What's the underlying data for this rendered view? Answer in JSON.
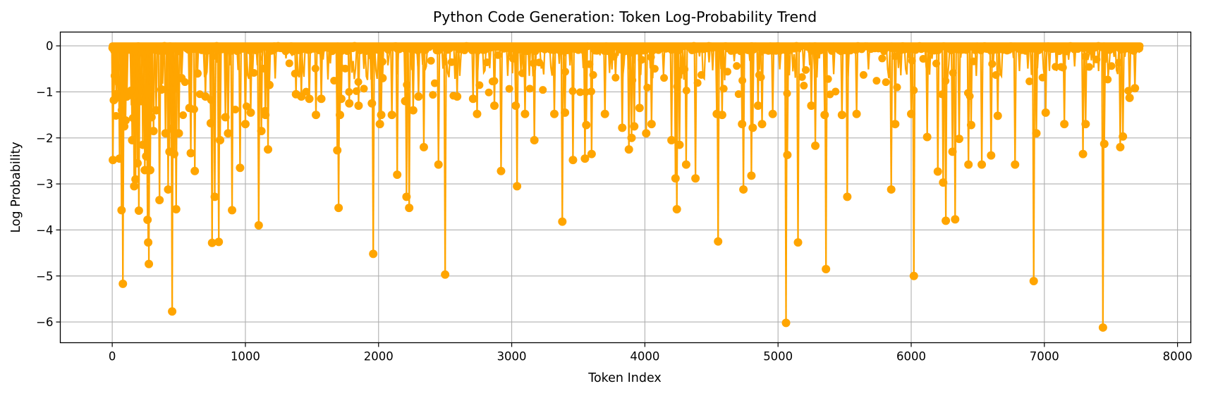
{
  "chart_data": {
    "type": "line",
    "title": "Python Code Generation: Token Log-Probability Trend",
    "xlabel": "Token Index",
    "ylabel": "Log Probability",
    "xlim": [
      -390,
      8100
    ],
    "ylim": [
      -6.45,
      0.3
    ],
    "xticks": [
      0,
      1000,
      2000,
      3000,
      4000,
      5000,
      6000,
      7000,
      8000
    ],
    "yticks": [
      0,
      -1,
      -2,
      -3,
      -4,
      -5,
      -6
    ],
    "xtick_labels": [
      "0",
      "1000",
      "2000",
      "3000",
      "4000",
      "5000",
      "6000",
      "7000",
      "8000"
    ],
    "ytick_labels": [
      "0",
      "−1",
      "−2",
      "−3",
      "−4",
      "−5",
      "−6"
    ],
    "grid": true,
    "color": "#ffa500",
    "marker": "circle",
    "n_tokens": 7720,
    "drops": [
      [
        5,
        -2.48
      ],
      [
        12,
        -1.18
      ],
      [
        20,
        -0.65
      ],
      [
        30,
        -1.05
      ],
      [
        55,
        -2.45
      ],
      [
        70,
        -3.57
      ],
      [
        80,
        -5.17
      ],
      [
        90,
        -1.75
      ],
      [
        100,
        -1.62
      ],
      [
        110,
        -1.1
      ],
      [
        150,
        -2.05
      ],
      [
        165,
        -3.05
      ],
      [
        175,
        -2.9
      ],
      [
        190,
        -2.55
      ],
      [
        200,
        -3.58
      ],
      [
        215,
        -1.2
      ],
      [
        230,
        -2.15
      ],
      [
        245,
        -2.7
      ],
      [
        255,
        -2.4
      ],
      [
        265,
        -3.78
      ],
      [
        270,
        -4.27
      ],
      [
        275,
        -4.74
      ],
      [
        285,
        -2.7
      ],
      [
        295,
        -1.55
      ],
      [
        310,
        -1.85
      ],
      [
        330,
        -1.4
      ],
      [
        355,
        -3.35
      ],
      [
        370,
        -0.95
      ],
      [
        400,
        -1.9
      ],
      [
        420,
        -3.12
      ],
      [
        430,
        -2.3
      ],
      [
        445,
        -1.8
      ],
      [
        450,
        -5.77
      ],
      [
        465,
        -2.35
      ],
      [
        480,
        -3.55
      ],
      [
        500,
        -1.9
      ],
      [
        520,
        -0.7
      ],
      [
        580,
        -1.35
      ],
      [
        590,
        -2.33
      ],
      [
        620,
        -2.72
      ],
      [
        640,
        -0.6
      ],
      [
        700,
        -1.1
      ],
      [
        740,
        -1.68
      ],
      [
        750,
        -4.28
      ],
      [
        770,
        -3.28
      ],
      [
        800,
        -4.26
      ],
      [
        810,
        -2.05
      ],
      [
        850,
        -1.55
      ],
      [
        870,
        -1.9
      ],
      [
        900,
        -3.57
      ],
      [
        960,
        -2.65
      ],
      [
        1000,
        -1.7
      ],
      [
        1040,
        -1.45
      ],
      [
        1100,
        -3.9
      ],
      [
        1120,
        -1.85
      ],
      [
        1150,
        -1.5
      ],
      [
        1170,
        -2.25
      ],
      [
        1180,
        -0.85
      ],
      [
        1380,
        -1.05
      ],
      [
        1420,
        -1.1
      ],
      [
        1480,
        -1.15
      ],
      [
        1530,
        -1.5
      ],
      [
        1570,
        -1.15
      ],
      [
        1690,
        -2.27
      ],
      [
        1700,
        -3.52
      ],
      [
        1710,
        -1.5
      ],
      [
        1720,
        -1.15
      ],
      [
        1780,
        -1.25
      ],
      [
        1850,
        -1.3
      ],
      [
        1950,
        -1.25
      ],
      [
        1960,
        -4.52
      ],
      [
        2010,
        -1.7
      ],
      [
        2020,
        -1.5
      ],
      [
        2030,
        -0.7
      ],
      [
        2100,
        -1.5
      ],
      [
        2140,
        -2.8
      ],
      [
        2200,
        -1.2
      ],
      [
        2210,
        -3.28
      ],
      [
        2230,
        -3.52
      ],
      [
        2260,
        -1.4
      ],
      [
        2300,
        -1.1
      ],
      [
        2340,
        -2.2
      ],
      [
        2450,
        -2.58
      ],
      [
        2500,
        -4.97
      ],
      [
        2590,
        -1.1
      ],
      [
        2710,
        -1.15
      ],
      [
        2740,
        -1.48
      ],
      [
        2870,
        -1.3
      ],
      [
        2920,
        -2.72
      ],
      [
        3030,
        -1.3
      ],
      [
        3040,
        -3.05
      ],
      [
        3100,
        -1.48
      ],
      [
        3170,
        -2.05
      ],
      [
        3320,
        -1.48
      ],
      [
        3380,
        -3.82
      ],
      [
        3400,
        -1.45
      ],
      [
        3460,
        -2.48
      ],
      [
        3550,
        -2.45
      ],
      [
        3560,
        -1.72
      ],
      [
        3600,
        -2.35
      ],
      [
        3700,
        -1.48
      ],
      [
        3830,
        -1.78
      ],
      [
        3880,
        -2.25
      ],
      [
        3900,
        -2.0
      ],
      [
        3920,
        -1.75
      ],
      [
        3960,
        -1.35
      ],
      [
        4010,
        -1.9
      ],
      [
        4050,
        -1.7
      ],
      [
        4200,
        -2.05
      ],
      [
        4230,
        -2.88
      ],
      [
        4240,
        -3.55
      ],
      [
        4260,
        -2.15
      ],
      [
        4310,
        -2.58
      ],
      [
        4380,
        -2.88
      ],
      [
        4540,
        -1.48
      ],
      [
        4550,
        -4.25
      ],
      [
        4580,
        -1.5
      ],
      [
        4730,
        -1.7
      ],
      [
        4740,
        -3.12
      ],
      [
        4800,
        -2.82
      ],
      [
        4810,
        -1.78
      ],
      [
        4850,
        -1.3
      ],
      [
        4880,
        -1.7
      ],
      [
        4960,
        -1.48
      ],
      [
        5060,
        -6.02
      ],
      [
        5070,
        -2.37
      ],
      [
        5150,
        -4.27
      ],
      [
        5250,
        -1.3
      ],
      [
        5280,
        -2.17
      ],
      [
        5350,
        -1.5
      ],
      [
        5360,
        -4.85
      ],
      [
        5480,
        -1.5
      ],
      [
        5520,
        -3.28
      ],
      [
        5590,
        -1.48
      ],
      [
        5850,
        -3.12
      ],
      [
        5880,
        -1.7
      ],
      [
        6000,
        -1.48
      ],
      [
        6020,
        -5.0
      ],
      [
        6120,
        -1.98
      ],
      [
        6200,
        -2.73
      ],
      [
        6240,
        -2.97
      ],
      [
        6260,
        -3.8
      ],
      [
        6310,
        -2.3
      ],
      [
        6330,
        -3.77
      ],
      [
        6360,
        -2.02
      ],
      [
        6430,
        -2.58
      ],
      [
        6450,
        -1.72
      ],
      [
        6530,
        -2.58
      ],
      [
        6600,
        -2.38
      ],
      [
        6650,
        -1.52
      ],
      [
        6780,
        -2.58
      ],
      [
        6920,
        -5.11
      ],
      [
        6940,
        -1.9
      ],
      [
        7010,
        -1.45
      ],
      [
        7150,
        -1.7
      ],
      [
        7290,
        -2.35
      ],
      [
        7310,
        -1.7
      ],
      [
        7440,
        -6.12
      ],
      [
        7450,
        -2.13
      ],
      [
        7570,
        -2.2
      ],
      [
        7590,
        -1.97
      ],
      [
        7640,
        -1.13
      ],
      [
        7680,
        -0.92
      ]
    ]
  }
}
